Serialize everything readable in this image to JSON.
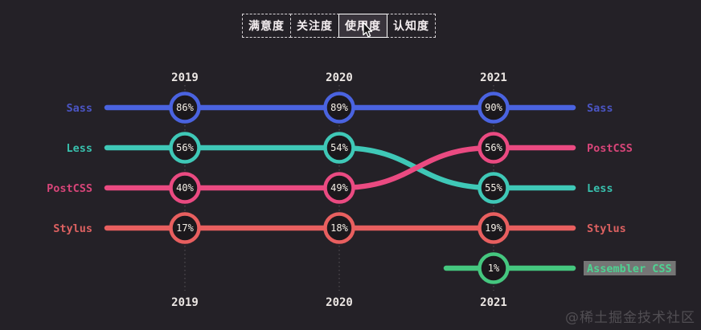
{
  "page": {
    "background": "#242127",
    "watermark": "@稀土掘金技术社区"
  },
  "tabs": [
    {
      "key": "satisfaction",
      "label": "满意度",
      "selected": false
    },
    {
      "key": "interest",
      "label": "关注度",
      "selected": false
    },
    {
      "key": "usage",
      "label": "使用度",
      "selected": true
    },
    {
      "key": "awareness",
      "label": "认知度",
      "selected": false
    }
  ],
  "chart_data": {
    "type": "line",
    "subtype": "bump-ranking-chart",
    "title": "",
    "x": [
      "2019",
      "2020",
      "2021"
    ],
    "unit": "%",
    "grid": "dotted-vertical-year-columns",
    "legend_position": "both-sides",
    "value_text_color": "#f6f0e7",
    "year_label_color": "#ece7e4",
    "dotted_line_color": "#5a565b",
    "point_fill": "#1b181c",
    "series": [
      {
        "name": "Sass",
        "color": "#4a63e0",
        "label_color": "#4b55c4",
        "values": [
          86,
          89,
          90
        ],
        "rank_rows": [
          1,
          1,
          1
        ]
      },
      {
        "name": "Less",
        "color": "#3fc8b7",
        "label_color": "#38c0ad",
        "values": [
          56,
          54,
          55
        ],
        "rank_rows": [
          2,
          2,
          3
        ]
      },
      {
        "name": "PostCSS",
        "color": "#ea4a81",
        "label_color": "#d84579",
        "values": [
          40,
          49,
          56
        ],
        "rank_rows": [
          3,
          3,
          2
        ]
      },
      {
        "name": "Stylus",
        "color": "#e85f5f",
        "label_color": "#dd6161",
        "values": [
          17,
          18,
          19
        ],
        "rank_rows": [
          4,
          4,
          4
        ]
      },
      {
        "name": "Assembler CSS",
        "color": "#45c77f",
        "label_color": "#4ed392",
        "values": [
          null,
          null,
          1
        ],
        "rank_rows": [
          null,
          null,
          5
        ],
        "highlighted": true,
        "highlight_bg": "#757575"
      }
    ],
    "left_labels": [
      "Sass",
      "Less",
      "PostCSS",
      "Stylus"
    ],
    "right_labels": [
      "Sass",
      "PostCSS",
      "Less",
      "Stylus",
      "Assembler CSS"
    ]
  }
}
